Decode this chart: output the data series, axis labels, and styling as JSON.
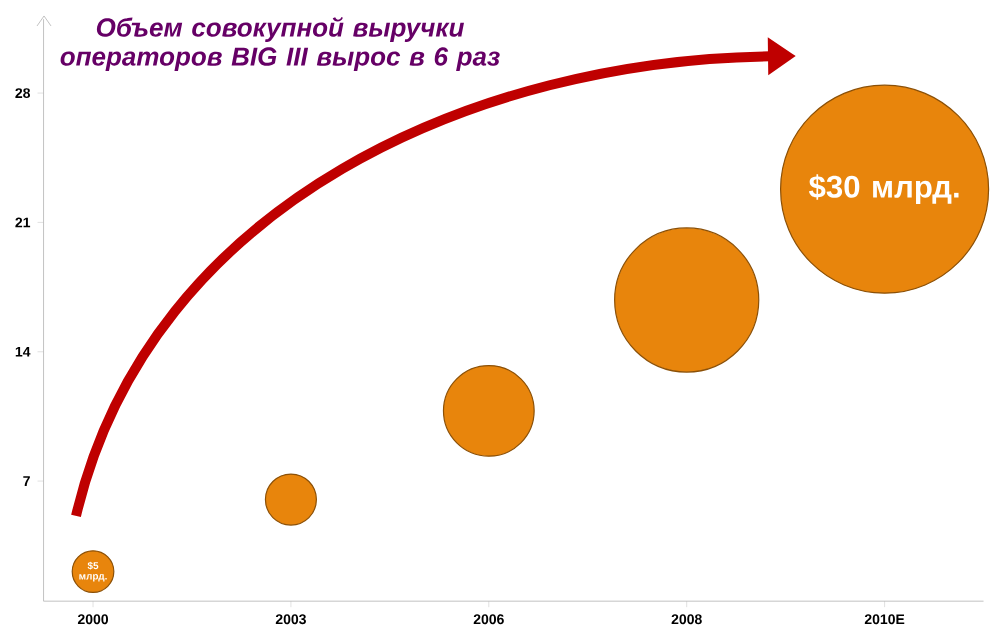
{
  "chart_data": {
    "type": "bubble",
    "title": "Объем совокупной выручки операторов BIG III вырос в 6 раз",
    "categories": [
      "2000",
      "2003",
      "2006",
      "2008",
      "2010E"
    ],
    "values": [
      2.1,
      6.0,
      10.8,
      16.8,
      22.8
    ],
    "sizes": [
      0.04,
      0.06,
      0.19,
      0.48,
      1.0
    ],
    "annotations": [
      {
        "text": "$5 млрд.",
        "x": "2000",
        "y": 2.1
      },
      {
        "text": "$30 млрд.",
        "x": "2010E",
        "y": 22.8
      }
    ],
    "color": "#e8850c",
    "ylim": [
      0.5,
      32
    ],
    "yticks": [
      7,
      14,
      21,
      28
    ],
    "grid": false
  }
}
